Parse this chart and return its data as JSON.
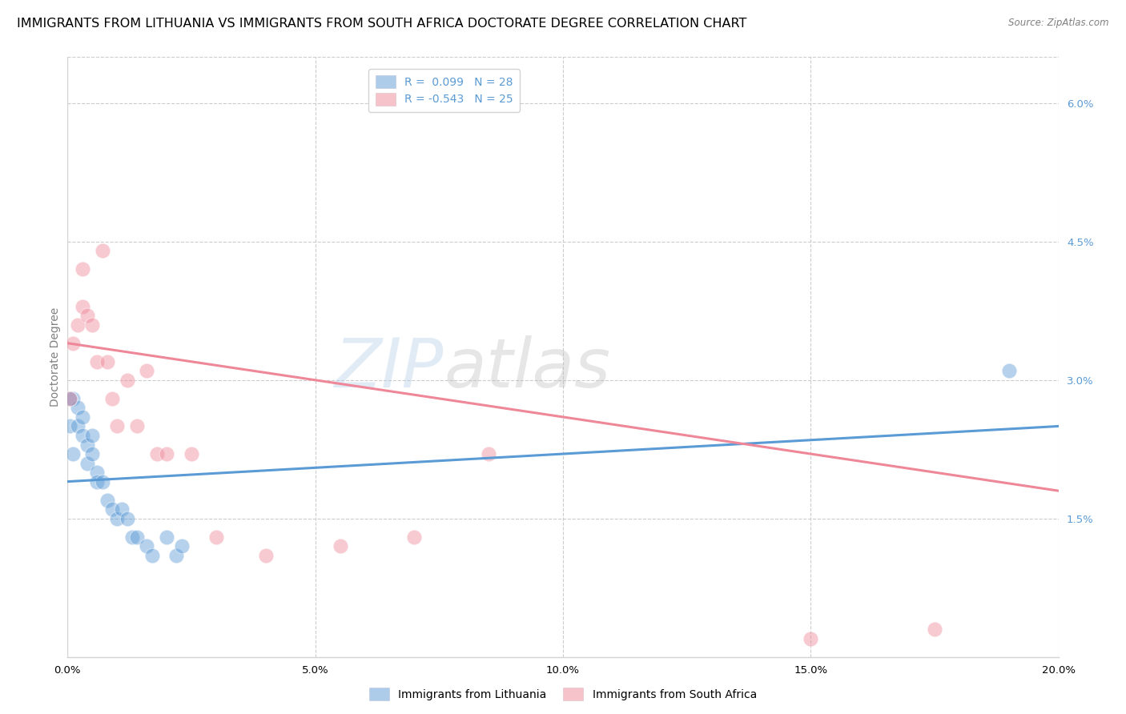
{
  "title": "IMMIGRANTS FROM LITHUANIA VS IMMIGRANTS FROM SOUTH AFRICA DOCTORATE DEGREE CORRELATION CHART",
  "source": "Source: ZipAtlas.com",
  "ylabel": "Doctorate Degree",
  "right_yticks": [
    "6.0%",
    "4.5%",
    "3.0%",
    "1.5%"
  ],
  "right_ytick_vals": [
    0.06,
    0.045,
    0.03,
    0.015
  ],
  "legend_blue_label": "R =  0.099   N = 28",
  "legend_pink_label": "R = -0.543   N = 25",
  "legend_blue_color": "#5b9bd5",
  "legend_pink_color": "#ee8899",
  "watermark_zip": "ZIP",
  "watermark_atlas": "atlas",
  "blue_scatter_x": [
    0.0005,
    0.001,
    0.001,
    0.002,
    0.002,
    0.003,
    0.003,
    0.004,
    0.004,
    0.005,
    0.005,
    0.006,
    0.006,
    0.007,
    0.008,
    0.009,
    0.01,
    0.011,
    0.012,
    0.013,
    0.014,
    0.016,
    0.017,
    0.02,
    0.022,
    0.023,
    0.0005,
    0.19
  ],
  "blue_scatter_y": [
    0.025,
    0.022,
    0.028,
    0.025,
    0.027,
    0.026,
    0.024,
    0.023,
    0.021,
    0.022,
    0.024,
    0.02,
    0.019,
    0.019,
    0.017,
    0.016,
    0.015,
    0.016,
    0.015,
    0.013,
    0.013,
    0.012,
    0.011,
    0.013,
    0.011,
    0.012,
    0.028,
    0.031
  ],
  "pink_scatter_x": [
    0.0005,
    0.001,
    0.002,
    0.003,
    0.003,
    0.004,
    0.005,
    0.006,
    0.007,
    0.008,
    0.009,
    0.01,
    0.012,
    0.014,
    0.016,
    0.018,
    0.02,
    0.025,
    0.03,
    0.04,
    0.055,
    0.07,
    0.085,
    0.15,
    0.175
  ],
  "pink_scatter_y": [
    0.028,
    0.034,
    0.036,
    0.038,
    0.042,
    0.037,
    0.036,
    0.032,
    0.044,
    0.032,
    0.028,
    0.025,
    0.03,
    0.025,
    0.031,
    0.022,
    0.022,
    0.022,
    0.013,
    0.011,
    0.012,
    0.013,
    0.022,
    0.002,
    0.003
  ],
  "blue_line_x": [
    0.0,
    0.2
  ],
  "blue_line_y": [
    0.019,
    0.025
  ],
  "pink_line_x": [
    0.0,
    0.2
  ],
  "pink_line_y": [
    0.034,
    0.018
  ],
  "xlim": [
    0.0,
    0.2
  ],
  "ylim": [
    0.0,
    0.065
  ],
  "xtick_vals": [
    0.0,
    0.05,
    0.1,
    0.15,
    0.2
  ],
  "xtick_labels": [
    "0.0%",
    "5.0%",
    "10.0%",
    "15.0%",
    "20.0%"
  ],
  "scatter_size": 180,
  "scatter_alpha": 0.45,
  "background_color": "#ffffff",
  "grid_color": "#cccccc",
  "title_fontsize": 11.5,
  "axis_label_fontsize": 10,
  "tick_fontsize": 9.5,
  "legend_fontsize": 10
}
